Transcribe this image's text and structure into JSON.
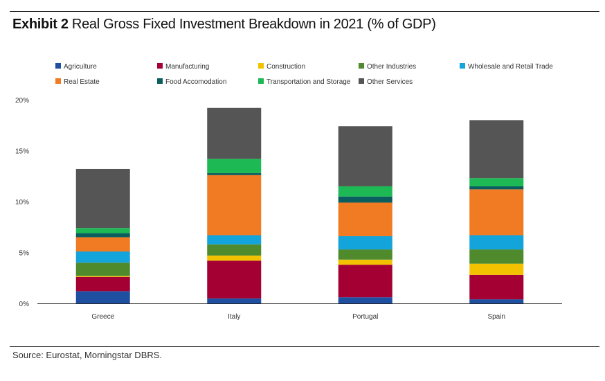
{
  "exhibit": {
    "label": "Exhibit 2",
    "title": "Real Gross Fixed Investment Breakdown in 2021 (% of GDP)"
  },
  "source": "Source: Eurostat, Morningstar DBRS.",
  "chart_data": {
    "type": "bar",
    "stacked": true,
    "title": "Real Gross Fixed Investment Breakdown in 2021 (% of GDP)",
    "xlabel": "",
    "ylabel": "",
    "ylim": [
      0,
      20
    ],
    "yticks": [
      0,
      5,
      10,
      15,
      20
    ],
    "ytick_labels": [
      "0%",
      "5%",
      "10%",
      "15%",
      "20%"
    ],
    "grid": false,
    "legend_position": "top",
    "categories": [
      "Greece",
      "Italy",
      "Portugal",
      "Spain"
    ],
    "series": [
      {
        "name": "Agriculture",
        "color": "#1f4fa0",
        "values": [
          1.2,
          0.5,
          0.6,
          0.4
        ]
      },
      {
        "name": "Manufacturing",
        "color": "#a50034",
        "values": [
          1.4,
          3.7,
          3.2,
          2.4
        ]
      },
      {
        "name": "Construction",
        "color": "#f2c200",
        "values": [
          0.1,
          0.5,
          0.5,
          1.1
        ]
      },
      {
        "name": "Other Industries",
        "color": "#4f8a2d",
        "values": [
          1.3,
          1.1,
          1.0,
          1.4
        ]
      },
      {
        "name": "Wholesale and Retail Trade",
        "color": "#14a4dc",
        "values": [
          1.1,
          0.9,
          1.3,
          1.4
        ]
      },
      {
        "name": "Real Estate",
        "color": "#f07b23",
        "values": [
          1.4,
          5.9,
          3.3,
          4.5
        ]
      },
      {
        "name": "Food Accomodation",
        "color": "#0b5e5e",
        "values": [
          0.4,
          0.2,
          0.6,
          0.3
        ]
      },
      {
        "name": "Transportation and Storage",
        "color": "#1db954",
        "values": [
          0.5,
          1.4,
          1.0,
          0.8
        ]
      },
      {
        "name": "Other Services",
        "color": "#555555",
        "values": [
          5.8,
          5.0,
          5.9,
          5.7
        ]
      }
    ]
  }
}
